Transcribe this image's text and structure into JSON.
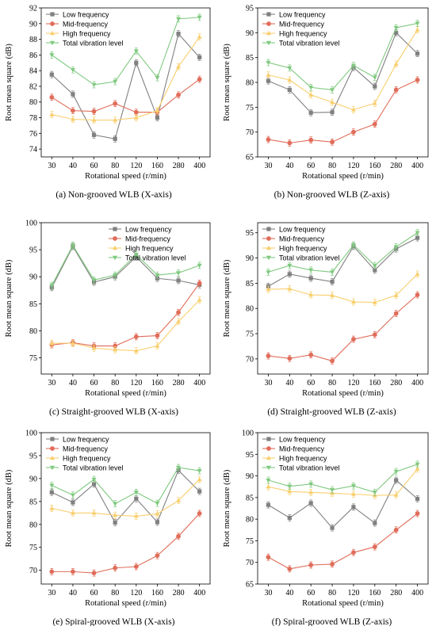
{
  "chart_data": [
    {
      "type": "line",
      "caption": "(a) Non-grooved  WLB (X-axis)",
      "xlabel": "Rotational speed (r/min)",
      "ylabel": "Root mean square (dB)",
      "categories": [
        "30",
        "40",
        "60",
        "80",
        "120",
        "160",
        "280",
        "400"
      ],
      "ylim": [
        73,
        92
      ],
      "yticks": [
        74,
        76,
        78,
        80,
        82,
        84,
        86,
        88,
        90,
        92
      ],
      "legend_position": "top-left",
      "series": [
        {
          "name": "Low frequency",
          "values": [
            83.5,
            81.0,
            75.8,
            75.3,
            85.0,
            78.0,
            88.7,
            85.7
          ]
        },
        {
          "name": "Mid-frequency",
          "values": [
            80.6,
            78.9,
            78.8,
            79.8,
            78.7,
            78.7,
            80.9,
            82.9
          ]
        },
        {
          "name": "High frequency",
          "values": [
            78.4,
            77.8,
            77.7,
            77.7,
            78.0,
            78.9,
            84.5,
            88.3
          ]
        },
        {
          "name": "Total vibration level",
          "values": [
            86.0,
            84.1,
            82.2,
            82.6,
            86.5,
            83.1,
            90.6,
            90.8
          ]
        }
      ]
    },
    {
      "type": "line",
      "caption": "(b) Non-grooved  WLB (Z-axis)",
      "xlabel": "Rotational speed (r/min)",
      "ylabel": "Root mean square (dB)",
      "categories": [
        "30",
        "40",
        "60",
        "80",
        "120",
        "160",
        "280",
        "400"
      ],
      "ylim": [
        65,
        95
      ],
      "yticks": [
        65,
        70,
        75,
        80,
        85,
        90,
        95
      ],
      "legend_position": "top-left",
      "series": [
        {
          "name": "Low frequency",
          "values": [
            80.3,
            78.5,
            73.9,
            74.0,
            83.0,
            79.2,
            90.0,
            85.8
          ]
        },
        {
          "name": "Mid-frequency",
          "values": [
            68.5,
            67.8,
            68.4,
            68.0,
            70.0,
            71.6,
            78.5,
            80.5
          ]
        },
        {
          "name": "High frequency",
          "values": [
            81.5,
            80.5,
            77.5,
            76.0,
            74.5,
            75.8,
            83.7,
            90.6
          ]
        },
        {
          "name": "Total vibration level",
          "values": [
            84.0,
            82.9,
            79.0,
            78.5,
            83.4,
            81.0,
            91.0,
            91.9
          ]
        }
      ]
    },
    {
      "type": "line",
      "caption": "(c) Straight-grooved  WLB (X-axis)",
      "xlabel": "Rotational speed (r/min)",
      "ylabel": "Root mean square (dB)",
      "categories": [
        "30",
        "40",
        "60",
        "80",
        "120",
        "160",
        "280",
        "400"
      ],
      "ylim": [
        72,
        100
      ],
      "yticks": [
        75,
        80,
        85,
        90,
        95,
        100
      ],
      "legend_position": "top-right",
      "series": [
        {
          "name": "Low frequency",
          "values": [
            88.0,
            95.6,
            89.0,
            90.0,
            93.7,
            89.7,
            89.3,
            88.5
          ]
        },
        {
          "name": "Mid-frequency",
          "values": [
            77.4,
            77.8,
            77.2,
            77.2,
            78.9,
            79.1,
            83.4,
            88.8
          ]
        },
        {
          "name": "High frequency",
          "values": [
            77.7,
            77.7,
            76.8,
            76.5,
            76.3,
            77.2,
            81.7,
            85.7
          ]
        },
        {
          "name": "Total vibration level",
          "values": [
            88.4,
            95.8,
            89.4,
            90.3,
            94.1,
            90.3,
            90.7,
            92.1
          ]
        }
      ]
    },
    {
      "type": "line",
      "caption": "(d) Straight-grooved  WLB (Z-axis)",
      "xlabel": "Rotational speed (r/min)",
      "ylabel": "Root mean square (dB)",
      "categories": [
        "30",
        "40",
        "60",
        "80",
        "120",
        "160",
        "280",
        "400"
      ],
      "ylim": [
        67,
        97
      ],
      "yticks": [
        70,
        75,
        80,
        85,
        90,
        95
      ],
      "legend_position": "top-left",
      "series": [
        {
          "name": "Low frequency",
          "values": [
            84.4,
            86.8,
            86.0,
            85.3,
            92.3,
            87.6,
            91.8,
            94.0
          ]
        },
        {
          "name": "Mid-frequency",
          "values": [
            70.6,
            70.1,
            70.8,
            69.6,
            73.9,
            74.8,
            79.0,
            82.7
          ]
        },
        {
          "name": "High frequency",
          "values": [
            83.8,
            83.9,
            82.7,
            82.6,
            81.3,
            81.2,
            82.6,
            86.8
          ]
        },
        {
          "name": "Total vibration level",
          "values": [
            87.2,
            88.5,
            87.6,
            87.2,
            92.6,
            88.5,
            92.2,
            95.0
          ]
        }
      ]
    },
    {
      "type": "line",
      "caption": "(e) Spiral-grooved  WLB (X-axis)",
      "xlabel": "Rotational speed (r/min)",
      "ylabel": "Root mean square (dB)",
      "categories": [
        "30",
        "40",
        "60",
        "80",
        "120",
        "160",
        "280",
        "400"
      ],
      "ylim": [
        67,
        100
      ],
      "yticks": [
        70,
        75,
        80,
        85,
        90,
        95,
        100
      ],
      "legend_position": "top-left",
      "series": [
        {
          "name": "Low frequency",
          "values": [
            87.0,
            84.8,
            88.8,
            80.4,
            85.6,
            80.5,
            91.8,
            87.2
          ]
        },
        {
          "name": "Mid-frequency",
          "values": [
            69.7,
            69.7,
            69.4,
            70.5,
            70.8,
            73.2,
            77.4,
            82.4
          ]
        },
        {
          "name": "High frequency",
          "values": [
            83.5,
            82.5,
            82.5,
            82.0,
            81.8,
            82.3,
            85.2,
            89.8
          ]
        },
        {
          "name": "Total vibration level",
          "values": [
            88.5,
            86.4,
            89.8,
            84.5,
            87.0,
            84.6,
            92.4,
            91.7
          ]
        }
      ]
    },
    {
      "type": "line",
      "caption": "(f) Spiral-grooved  WLB (Z-axis)",
      "xlabel": "Rotational speed (r/min)",
      "ylabel": "Root mean square (dB)",
      "categories": [
        "30",
        "40",
        "60",
        "80",
        "120",
        "160",
        "280",
        "400"
      ],
      "ylim": [
        65,
        100
      ],
      "yticks": [
        65,
        70,
        75,
        80,
        85,
        90,
        95,
        100
      ],
      "legend_position": "top-left",
      "series": [
        {
          "name": "Low frequency",
          "values": [
            83.3,
            80.3,
            83.7,
            78.0,
            82.8,
            79.1,
            89.0,
            84.7
          ]
        },
        {
          "name": "Mid-frequency",
          "values": [
            71.2,
            68.5,
            69.4,
            69.6,
            72.3,
            73.6,
            77.5,
            81.3
          ]
        },
        {
          "name": "High frequency",
          "values": [
            87.5,
            86.4,
            86.2,
            86.0,
            85.8,
            85.5,
            85.6,
            91.6
          ]
        },
        {
          "name": "Total vibration level",
          "values": [
            89.0,
            87.6,
            88.1,
            86.8,
            87.7,
            86.2,
            91.0,
            92.7
          ]
        }
      ]
    }
  ],
  "style": {
    "colors": [
      "#808080",
      "#e06d5a",
      "#f8cf6e",
      "#7fc97f"
    ],
    "markers": [
      "square",
      "circle",
      "triangle-up",
      "triangle-down"
    ]
  }
}
